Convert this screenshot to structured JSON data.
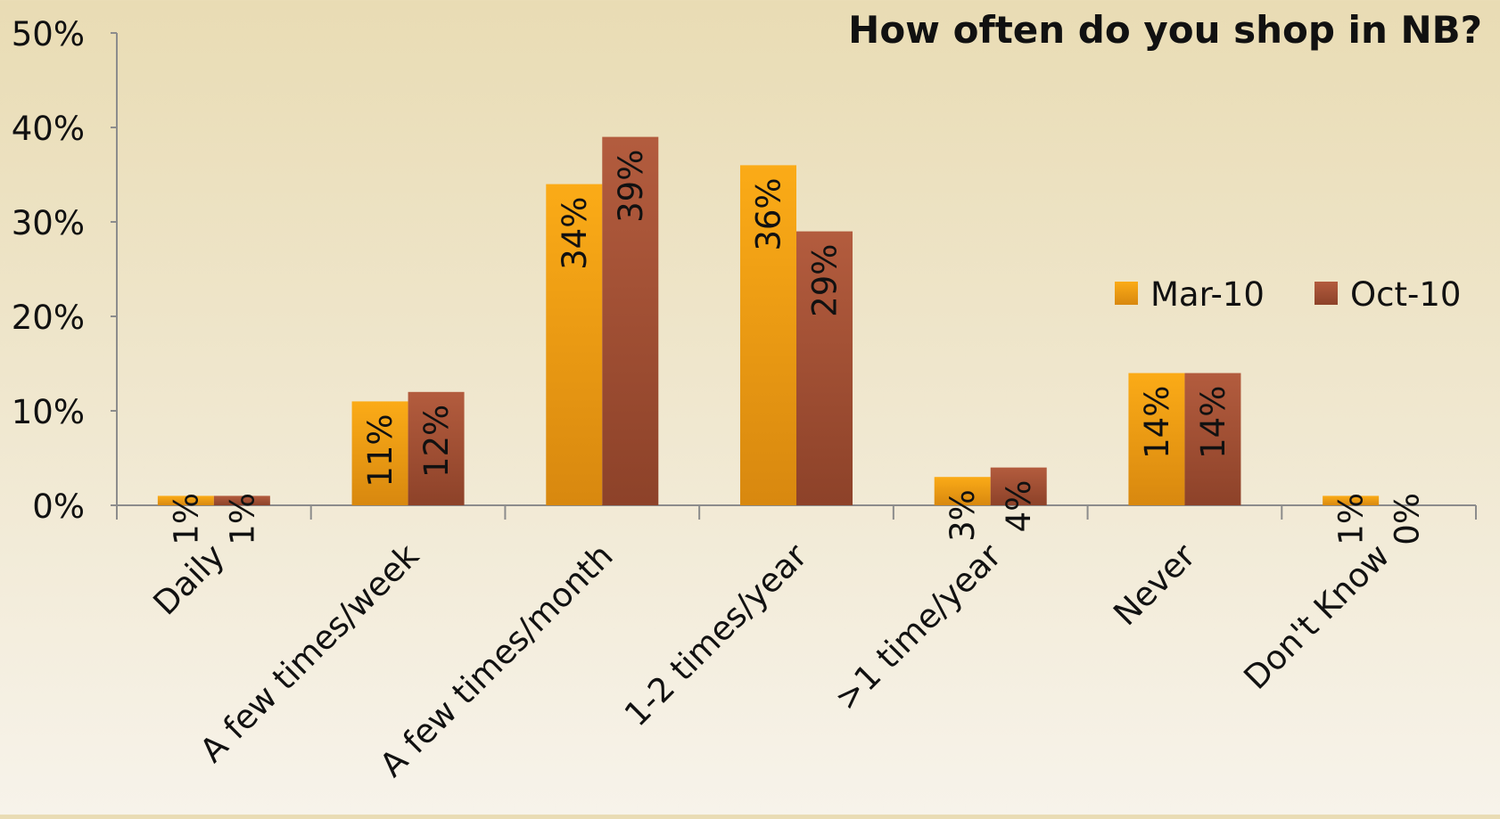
{
  "chart_data": {
    "type": "bar",
    "title": "How often do you shop in NB?",
    "categories": [
      "Daily",
      "A few times/week",
      "A few times/month",
      "1-2 times/year",
      ">1 time/year",
      "Never",
      "Don't Know"
    ],
    "series": [
      {
        "name": "Mar-10",
        "values": [
          1,
          11,
          34,
          36,
          3,
          14,
          1
        ],
        "labels": [
          "1%",
          "11%",
          "34%",
          "36%",
          "3%",
          "14%",
          "1%"
        ],
        "color": "#f5a516"
      },
      {
        "name": "Oct-10",
        "values": [
          1,
          12,
          39,
          29,
          4,
          14,
          0
        ],
        "labels": [
          "1%",
          "12%",
          "39%",
          "29%",
          "4%",
          "14%",
          "0%"
        ],
        "color": "#a9543a"
      }
    ],
    "ylim": [
      0,
      50
    ],
    "yticks": [
      "0%",
      "10%",
      "20%",
      "30%",
      "40%",
      "50%"
    ],
    "xlabel": "",
    "ylabel": "",
    "legend": "right",
    "grid": false
  }
}
